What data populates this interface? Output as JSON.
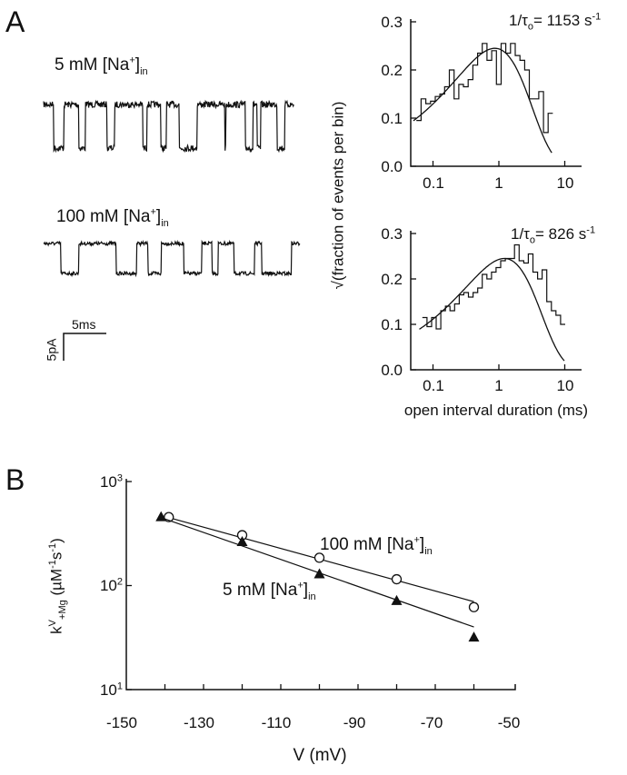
{
  "panels": {
    "a": "A",
    "b": "B"
  },
  "colors": {
    "ink": "#111111",
    "background": "#ffffff"
  },
  "traces": {
    "scale_bar": {
      "time_label": "5ms",
      "current_label": "5pA",
      "time_ms": 5,
      "current_pA": 5
    },
    "items": [
      {
        "label": {
          "pre": "5 mM [Na",
          "sup": "+",
          "mid": "]",
          "sub": "in"
        },
        "duration_ms": 29.3,
        "step_pA": 8,
        "open_intervals_ms": [
          [
            1.2,
            2.4
          ],
          [
            4.1,
            4.9
          ],
          [
            7.4,
            8.3
          ],
          [
            11.6,
            12.1
          ],
          [
            13.7,
            14.4
          ],
          [
            15.9,
            18.0
          ],
          [
            21.2,
            21.35
          ],
          [
            23.6,
            24.5
          ],
          [
            25.0,
            25.4
          ],
          [
            27.3,
            28.2
          ]
        ]
      },
      {
        "label": {
          "pre": "100 mM [Na",
          "sup": "+",
          "mid": "]",
          "sub": "in"
        },
        "duration_ms": 30.0,
        "step_pA": 5.5,
        "open_intervals_ms": [
          [
            2.0,
            4.1
          ],
          [
            8.5,
            10.9
          ],
          [
            12.2,
            13.8
          ],
          [
            16.4,
            18.5
          ],
          [
            19.7,
            20.4
          ],
          [
            22.3,
            24.7
          ],
          [
            25.5,
            29.0
          ]
        ]
      }
    ]
  },
  "chart_data": [
    {
      "type": "histogram",
      "title": {
        "pre": "1/τ",
        "sub": "o",
        "mid": "= 1153 s",
        "sup": "-1"
      },
      "rate_per_s": 1153,
      "xscale": "log",
      "xlim": [
        0.045,
        15
      ],
      "ylim": [
        0,
        0.3
      ],
      "xticks": [
        "0.1",
        "1",
        "10"
      ],
      "xtick_values": [
        0.1,
        1,
        10
      ],
      "yticks": [
        "0.3",
        "0.2",
        "0.1",
        "0.0"
      ],
      "ytick_values": [
        0.3,
        0.2,
        0.1,
        0.0
      ],
      "bin_start_ms": 0.056,
      "bins_per_decade": 14,
      "values": [
        0.095,
        0.14,
        0.13,
        0.135,
        0.145,
        0.15,
        0.165,
        0.2,
        0.14,
        0.17,
        0.165,
        0.18,
        0.21,
        0.235,
        0.255,
        0.22,
        0.24,
        0.17,
        0.255,
        0.235,
        0.255,
        0.23,
        0.22,
        0.2,
        0.14,
        0.14,
        0.155,
        0.07,
        0.11
      ],
      "fit_peak": 0.245
    },
    {
      "type": "histogram",
      "title": {
        "pre": "1/τ",
        "sub": "o",
        "mid": "= 826 s",
        "sup": "-1"
      },
      "rate_per_s": 826,
      "xscale": "log",
      "xlim": [
        0.045,
        15
      ],
      "ylim": [
        0,
        0.3
      ],
      "xticks": [
        "0.1",
        "1",
        "10"
      ],
      "xtick_values": [
        0.1,
        1,
        10
      ],
      "yticks": [
        "0.3",
        "0.2",
        "0.1",
        "0.0"
      ],
      "ytick_values": [
        0.3,
        0.2,
        0.1,
        0.0
      ],
      "bin_start_ms": 0.069,
      "bins_per_decade": 14.3,
      "values": [
        0.115,
        0.095,
        0.115,
        0.09,
        0.13,
        0.14,
        0.13,
        0.145,
        0.165,
        0.17,
        0.16,
        0.17,
        0.18,
        0.21,
        0.2,
        0.215,
        0.225,
        0.24,
        0.245,
        0.245,
        0.275,
        0.24,
        0.235,
        0.255,
        0.215,
        0.2,
        0.22,
        0.15,
        0.13,
        0.12,
        0.1
      ],
      "fit_peak": 0.245,
      "xlabel": "open interval duration (ms)"
    },
    {
      "type": "scatter",
      "ylabel": {
        "k": "k",
        "sup": "V",
        "sub": "+Mg",
        "mid": " (µM",
        "sup2": "-1",
        "s": "s",
        "sup3": "-1",
        "end": ")"
      },
      "xlabel": "V (mV)",
      "xlim": [
        -150,
        -50
      ],
      "ylim": [
        10,
        1000
      ],
      "yscale": "log",
      "xticks": [
        "-150",
        "-130",
        "-110",
        "-90",
        "-70",
        "-50"
      ],
      "xtick_values": [
        -150,
        -130,
        -110,
        -90,
        -70,
        -50
      ],
      "yticks": [
        {
          "base": "10",
          "exp": "3"
        },
        {
          "base": "10",
          "exp": "2"
        },
        {
          "base": "10",
          "exp": "1"
        }
      ],
      "ytick_values": [
        1000,
        100,
        10
      ],
      "series": [
        {
          "name": {
            "pre": "100 mM [Na",
            "sup": "+",
            "mid": "]",
            "sub": "in"
          },
          "marker": "open-circle",
          "x": [
            -139,
            -120,
            -100,
            -80,
            -60
          ],
          "y": [
            455,
            305,
            185,
            115,
            62
          ],
          "fit": [
            [
              -139,
              450
            ],
            [
              -60,
              70
            ]
          ]
        },
        {
          "name": {
            "pre": "5 mM [Na",
            "sup": "+",
            "mid": "]",
            "sub": "in"
          },
          "marker": "filled-triangle",
          "x": [
            -141,
            -120,
            -100,
            -80,
            -60
          ],
          "y": [
            460,
            265,
            130,
            72,
            32
          ],
          "fit": [
            [
              -141,
              450
            ],
            [
              -60,
              40
            ]
          ]
        }
      ]
    }
  ]
}
